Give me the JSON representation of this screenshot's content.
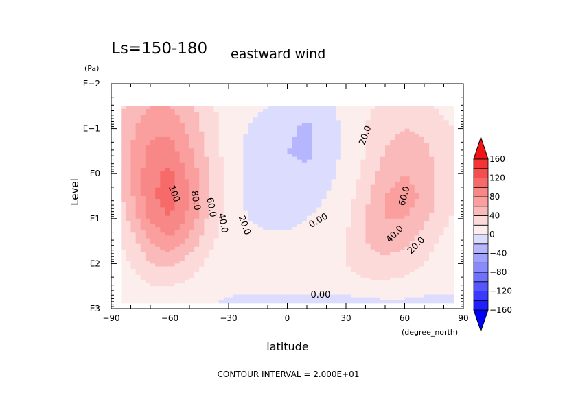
{
  "chart_data": {
    "type": "heatmap",
    "title": "Ls=150-180",
    "subtitle": "eastward wind",
    "xlabel": "latitude",
    "xunit": "(degree_north)",
    "ylabel": "Level",
    "yunit": "(Pa)",
    "footer": "CONTOUR INTERVAL = 2.000E+01",
    "xlim": [
      -90,
      90
    ],
    "ylim_log10": [
      -2,
      3
    ],
    "xticks": [
      -90,
      -60,
      -30,
      0,
      30,
      60,
      90
    ],
    "xtick_labels": [
      "−90",
      "−60",
      "−30",
      "0",
      "30",
      "60",
      "90"
    ],
    "ytick_labels": [
      "E−2",
      "E−1",
      "E0",
      "E1",
      "E2",
      "E3"
    ],
    "ytick_values_log10": [
      -2,
      -1,
      0,
      1,
      2,
      3
    ],
    "data_lat_range": [
      -85,
      85
    ],
    "lat": [
      -90,
      -80,
      -70,
      -60,
      -50,
      -40,
      -30,
      -20,
      -10,
      0,
      10,
      20,
      30,
      40,
      50,
      60,
      70,
      80,
      90
    ],
    "level_log10": [
      -1.5,
      -1,
      -0.5,
      0,
      0.5,
      1,
      1.5,
      2,
      2.5,
      2.85
    ],
    "values": [
      [
        30,
        45,
        60,
        60,
        45,
        25,
        10,
        5,
        0,
        -5,
        -10,
        -5,
        5,
        15,
        25,
        30,
        25,
        15,
        10
      ],
      [
        30,
        55,
        75,
        75,
        55,
        30,
        10,
        0,
        -10,
        -15,
        -25,
        -10,
        5,
        20,
        35,
        40,
        35,
        25,
        15
      ],
      [
        30,
        60,
        85,
        90,
        65,
        35,
        10,
        -5,
        -15,
        -20,
        -25,
        -10,
        5,
        20,
        40,
        50,
        45,
        30,
        15
      ],
      [
        25,
        60,
        95,
        105,
        75,
        40,
        12,
        -5,
        -15,
        -15,
        -15,
        -5,
        5,
        25,
        50,
        60,
        50,
        30,
        15
      ],
      [
        20,
        55,
        95,
        110,
        80,
        40,
        12,
        -5,
        -10,
        -10,
        -8,
        0,
        10,
        35,
        60,
        70,
        55,
        30,
        15
      ],
      [
        15,
        45,
        85,
        100,
        75,
        35,
        12,
        0,
        -5,
        -5,
        0,
        5,
        15,
        40,
        60,
        60,
        45,
        25,
        10
      ],
      [
        12,
        30,
        60,
        75,
        55,
        25,
        10,
        5,
        5,
        5,
        5,
        10,
        20,
        40,
        50,
        45,
        30,
        15,
        8
      ],
      [
        8,
        20,
        40,
        45,
        30,
        15,
        8,
        5,
        5,
        5,
        5,
        10,
        20,
        30,
        35,
        30,
        20,
        10,
        5
      ],
      [
        5,
        10,
        20,
        20,
        15,
        8,
        5,
        5,
        5,
        5,
        5,
        5,
        10,
        15,
        15,
        12,
        8,
        5,
        3
      ],
      [
        3,
        5,
        8,
        8,
        5,
        2,
        -2,
        -5,
        -5,
        -5,
        -5,
        -5,
        -8,
        -5,
        -3,
        -3,
        -5,
        -5,
        -5
      ]
    ],
    "contour_interval": 20,
    "contour_labels": [
      {
        "text": "100",
        "lat": -58,
        "level": 0.45,
        "rot": 70
      },
      {
        "text": "80.0",
        "lat": -47,
        "level": 0.6,
        "rot": 80
      },
      {
        "text": "60.0",
        "lat": -39,
        "level": 0.75,
        "rot": 80
      },
      {
        "text": "40.0",
        "lat": -33,
        "level": 1.1,
        "rot": 80
      },
      {
        "text": "20.0",
        "lat": -22,
        "level": 1.15,
        "rot": 70
      },
      {
        "text": "0.00",
        "lat": 16,
        "level": 1.05,
        "rot": -30
      },
      {
        "text": "20.0",
        "lat": 40,
        "level": -0.85,
        "rot": -70
      },
      {
        "text": "60.0",
        "lat": 60,
        "level": 0.5,
        "rot": -75
      },
      {
        "text": "40.0",
        "lat": 55,
        "level": 1.35,
        "rot": -45
      },
      {
        "text": "20.0",
        "lat": 66,
        "level": 1.6,
        "rot": -45
      },
      {
        "text": "0.00",
        "lat": 17,
        "level": 2.7,
        "rot": 0
      }
    ],
    "colorbar": {
      "levels": [
        -160,
        -140,
        -120,
        -100,
        -80,
        -60,
        -40,
        -20,
        0,
        20,
        40,
        60,
        80,
        100,
        120,
        140,
        160
      ],
      "colors": [
        "#0000ff",
        "#1e1eff",
        "#3a3aff",
        "#5656ff",
        "#7070ff",
        "#8a8aff",
        "#a0a0ff",
        "#b6b6ff",
        "#dcdcff",
        "#fdeeee",
        "#fcdada",
        "#fbbaba",
        "#fa9e9e",
        "#f88888",
        "#f76a6a",
        "#f64e4e",
        "#f43434",
        "#f21414"
      ],
      "tick_labels": [
        "160",
        "120",
        "80",
        "40",
        "0",
        "−40",
        "−80",
        "−120",
        "−160"
      ],
      "tick_values": [
        160,
        120,
        80,
        40,
        0,
        -40,
        -80,
        -120,
        -160
      ]
    }
  }
}
